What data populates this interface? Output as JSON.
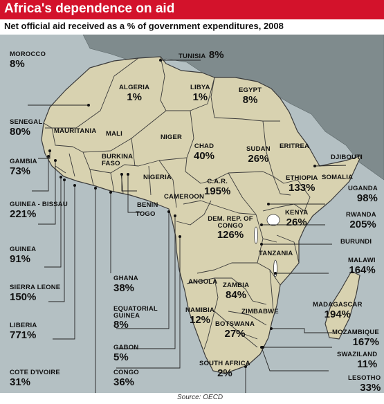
{
  "title": "Africa's dependence on aid",
  "subtitle": "Net official aid received as a % of government expenditures, 2008",
  "source": "Source: OECD",
  "colors": {
    "header": "#d3122b",
    "africa_land": "#d8d2b0",
    "other_land": "#7f8b8d",
    "sea": "#b4c0c3",
    "border": "#3a3a3a"
  },
  "countries": [
    {
      "id": "morocco",
      "name": "MOROCCO",
      "value": "8%"
    },
    {
      "id": "tunisia",
      "name": "TUNISIA",
      "value": "8%"
    },
    {
      "id": "algeria",
      "name": "ALGERIA",
      "value": "1%"
    },
    {
      "id": "libya",
      "name": "LIBYA",
      "value": "1%"
    },
    {
      "id": "egypt",
      "name": "EGYPT",
      "value": "8%"
    },
    {
      "id": "senegal",
      "name": "SENEGAL",
      "value": "80%"
    },
    {
      "id": "mauritania",
      "name": "MAURITANIA",
      "value": ""
    },
    {
      "id": "mali",
      "name": "MALI",
      "value": ""
    },
    {
      "id": "niger",
      "name": "NIGER",
      "value": ""
    },
    {
      "id": "chad",
      "name": "CHAD",
      "value": "40%"
    },
    {
      "id": "sudan",
      "name": "SUDAN",
      "value": "26%"
    },
    {
      "id": "eritrea",
      "name": "ERITREA",
      "value": ""
    },
    {
      "id": "djibouti",
      "name": "DJIBOUTI",
      "value": ""
    },
    {
      "id": "gambia",
      "name": "GAMBIA",
      "value": "73%"
    },
    {
      "id": "burkina",
      "name": "BURKINA FASO",
      "value": ""
    },
    {
      "id": "nigeria",
      "name": "NIGERIA",
      "value": ""
    },
    {
      "id": "car",
      "name": "C.A.R.",
      "value": "195%"
    },
    {
      "id": "ethiopia",
      "name": "ETHIOPIA",
      "value": "133%"
    },
    {
      "id": "somalia",
      "name": "SOMALIA",
      "value": ""
    },
    {
      "id": "uganda",
      "name": "UGANDA",
      "value": "98%"
    },
    {
      "id": "guineabissau",
      "name": "GUINEA - BISSAU",
      "value": "221%"
    },
    {
      "id": "benin",
      "name": "BENIN",
      "value": ""
    },
    {
      "id": "togo",
      "name": "TOGO",
      "value": ""
    },
    {
      "id": "cameroon",
      "name": "CAMEROON",
      "value": ""
    },
    {
      "id": "drc",
      "name": "DEM. REP. OF CONGO",
      "value": "126%"
    },
    {
      "id": "kenya",
      "name": "KENYA",
      "value": "26%"
    },
    {
      "id": "rwanda",
      "name": "RWANDA",
      "value": "205%"
    },
    {
      "id": "burundi",
      "name": "BURUNDI",
      "value": ""
    },
    {
      "id": "guinea",
      "name": "GUINEA",
      "value": "91%"
    },
    {
      "id": "tanzania",
      "name": "TANZANIA",
      "value": ""
    },
    {
      "id": "malawi",
      "name": "MALAWI",
      "value": "164%"
    },
    {
      "id": "sierraleone",
      "name": "SIERRA LEONE",
      "value": "150%"
    },
    {
      "id": "ghana",
      "name": "GHANA",
      "value": "38%"
    },
    {
      "id": "angola",
      "name": "ANGOLA",
      "value": ""
    },
    {
      "id": "zambia",
      "name": "ZAMBIA",
      "value": "84%"
    },
    {
      "id": "madagascar",
      "name": "MADAGASCAR",
      "value": "194%"
    },
    {
      "id": "liberia",
      "name": "LIBERIA",
      "value": "771%"
    },
    {
      "id": "eqguinea",
      "name": "EQUATORIAL GUINEA",
      "value": "8%"
    },
    {
      "id": "namibia",
      "name": "NAMIBIA",
      "value": "12%"
    },
    {
      "id": "zimbabwe",
      "name": "ZIMBABWE",
      "value": ""
    },
    {
      "id": "botswana",
      "name": "BOTSWANA",
      "value": "27%"
    },
    {
      "id": "mozambique",
      "name": "MOZAMBIQUE",
      "value": "167%"
    },
    {
      "id": "gabon",
      "name": "GABON",
      "value": "5%"
    },
    {
      "id": "swaziland",
      "name": "SWAZILAND",
      "value": "11%"
    },
    {
      "id": "cotedivoire",
      "name": "COTE D'IVOIRE",
      "value": "31%"
    },
    {
      "id": "congo",
      "name": "CONGO",
      "value": "36%"
    },
    {
      "id": "southafrica",
      "name": "SOUTH AFRICA",
      "value": "2%"
    },
    {
      "id": "lesotho",
      "name": "LESOTHO",
      "value": "33%"
    }
  ]
}
